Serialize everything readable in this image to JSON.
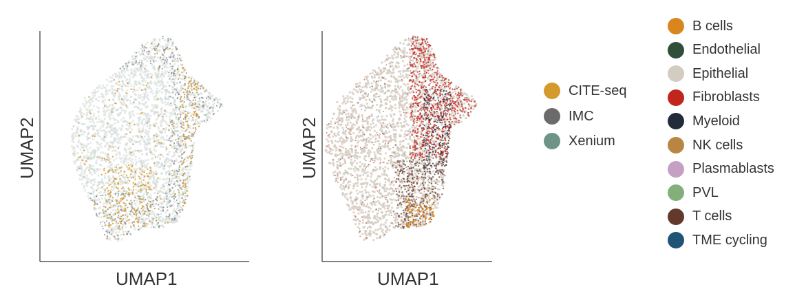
{
  "chart_data": [
    {
      "type": "scatter",
      "title": "",
      "xlabel": "UMAP1",
      "ylabel": "UMAP2",
      "grid": false,
      "legend": "right",
      "series": [
        {
          "name": "CITE-seq",
          "color": "#D49A2E"
        },
        {
          "name": "IMC",
          "color": "#6B6B6B"
        },
        {
          "name": "Xenium",
          "color": "#6E9488"
        }
      ]
    },
    {
      "type": "scatter",
      "title": "",
      "xlabel": "UMAP1",
      "ylabel": "UMAP2",
      "grid": false,
      "legend": "right",
      "series": [
        {
          "name": "B cells",
          "color": "#D9861E"
        },
        {
          "name": "Endothelial",
          "color": "#2F4F3A"
        },
        {
          "name": "Epithelial",
          "color": "#D3CCC0"
        },
        {
          "name": "Fibroblasts",
          "color": "#C0261E"
        },
        {
          "name": "Myeloid",
          "color": "#232A3A"
        },
        {
          "name": "NK cells",
          "color": "#B88642"
        },
        {
          "name": "Plasmablasts",
          "color": "#C4A1C4"
        },
        {
          "name": "PVL",
          "color": "#83B07A"
        },
        {
          "name": "T cells",
          "color": "#62392A"
        },
        {
          "name": "TME cycling",
          "color": "#1F5475"
        }
      ]
    }
  ]
}
